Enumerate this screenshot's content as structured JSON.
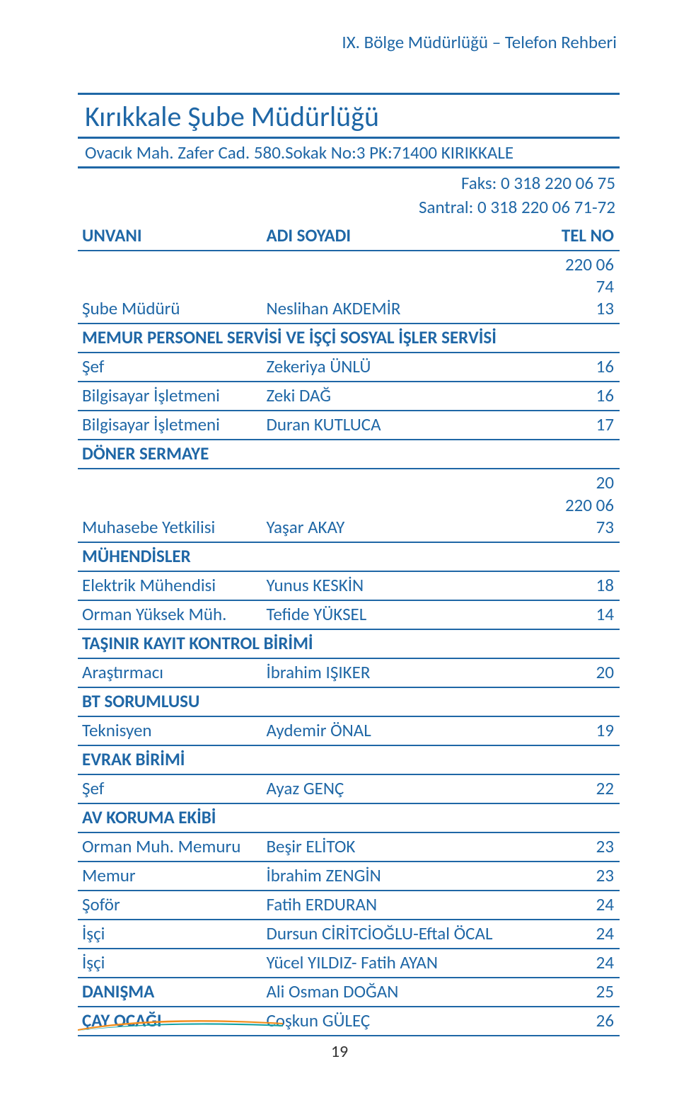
{
  "colors": {
    "accent": "#1f67a6",
    "rule": "#1f67a6",
    "header_text": "#1f67a6",
    "swoosh_orange": "#f28c1a",
    "swoosh_teal": "#14a2a6",
    "pagenum": "#333333"
  },
  "header": {
    "text": "IX. Bölge Müdürlüğü – Telefon Rehberi"
  },
  "title": {
    "main": "Kırıkkale Şube Müdürlüğü",
    "sub": "Ovacık Mah. Zafer Cad. 580.Sokak No:3 PK:71400 KIRIKKALE"
  },
  "contact": {
    "faks": "Faks: 0 318 220 06 75",
    "santral": "Santral: 0 318 220 06 71-72"
  },
  "table_header": {
    "c1": "UNVANI",
    "c2": "ADI SOYADI",
    "c3": "TEL NO"
  },
  "rows": [
    {
      "type": "data",
      "c1": "Şube Müdürü",
      "c2": "Neslihan AKDEMİR",
      "c3a": "220 06 74",
      "c3b": "13"
    },
    {
      "type": "section",
      "c1": "MEMUR PERSONEL SERVİSİ VE İŞÇİ SOSYAL İŞLER SERVİSİ"
    },
    {
      "type": "data",
      "c1": "Şef",
      "c2": "Zekeriya ÜNLÜ",
      "c3a": "16"
    },
    {
      "type": "data",
      "c1": "Bilgisayar İşletmeni",
      "c2": "Zeki DAĞ",
      "c3a": "16"
    },
    {
      "type": "data",
      "c1": "Bilgisayar İşletmeni",
      "c2": "Duran KUTLUCA",
      "c3a": "17"
    },
    {
      "type": "section",
      "c1": "DÖNER SERMAYE"
    },
    {
      "type": "data",
      "c1": "Muhasebe Yetkilisi",
      "c2": "Yaşar AKAY",
      "c3a": "20",
      "c3b": "220 06 73"
    },
    {
      "type": "section",
      "c1": "MÜHENDİSLER"
    },
    {
      "type": "data",
      "c1": "Elektrik Mühendisi",
      "c2": "Yunus KESKİN",
      "c3a": "18"
    },
    {
      "type": "data",
      "c1": "Orman Yüksek Müh.",
      "c2": "Tefide YÜKSEL",
      "c3a": "14"
    },
    {
      "type": "section",
      "c1": "TAŞINIR KAYIT KONTROL BİRİMİ"
    },
    {
      "type": "data",
      "c1": "Araştırmacı",
      "c2": "İbrahim IŞIKER",
      "c3a": "20"
    },
    {
      "type": "section",
      "c1": "BT SORUMLUSU"
    },
    {
      "type": "data",
      "c1": "Teknisyen",
      "c2": "Aydemir ÖNAL",
      "c3a": "19"
    },
    {
      "type": "section",
      "c1": "EVRAK BİRİMİ"
    },
    {
      "type": "data",
      "c1": "Şef",
      "c2": "Ayaz GENÇ",
      "c3a": "22"
    },
    {
      "type": "section",
      "c1": "AV KORUMA EKİBİ"
    },
    {
      "type": "data",
      "c1": "Orman Muh. Memuru",
      "c2": "Beşir ELİTOK",
      "c3a": "23"
    },
    {
      "type": "data",
      "c1": "Memur",
      "c2": "İbrahim ZENGİN",
      "c3a": "23"
    },
    {
      "type": "data",
      "c1": "Şoför",
      "c2": "Fatih ERDURAN",
      "c3a": "24"
    },
    {
      "type": "data",
      "c1": "İşçi",
      "c2": "Dursun CİRİTCİOĞLU-Eftal ÖCAL",
      "c3a": "24"
    },
    {
      "type": "data",
      "c1": "İşçi",
      "c2": "Yücel YILDIZ- Fatih AYAN",
      "c3a": "24"
    },
    {
      "type": "data",
      "c1": "DANIŞMA",
      "c1_bold": true,
      "c2": "Ali Osman DOĞAN",
      "c3a": "25"
    },
    {
      "type": "data",
      "c1": "ÇAY OCAĞI",
      "c1_bold": true,
      "c2": "Coşkun GÜLEÇ",
      "c3a": "26"
    }
  ],
  "page_number": "19"
}
